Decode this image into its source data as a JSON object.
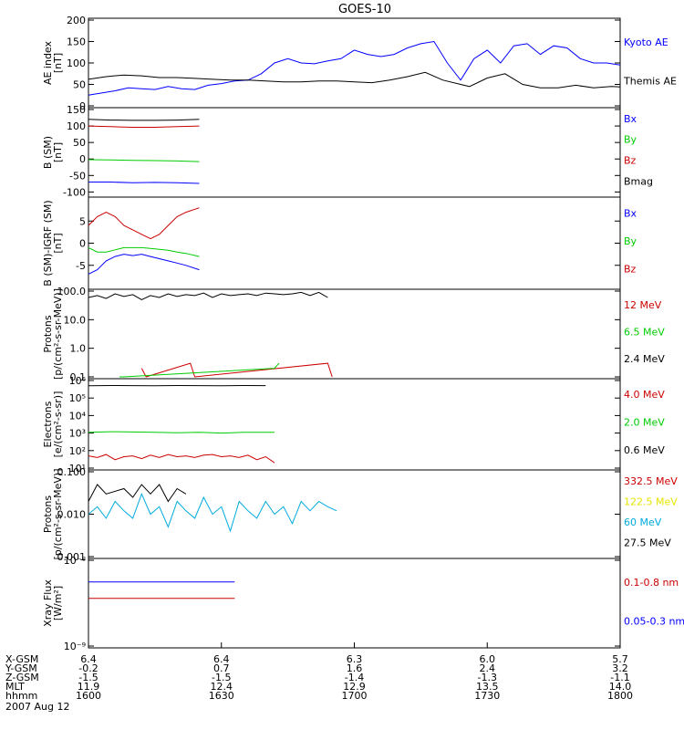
{
  "title": "GOES-10",
  "chart_data": [
    {
      "type": "line",
      "ylabel": [
        "AE index",
        "[nT]"
      ],
      "ylim": [
        0,
        200
      ],
      "yticks": [
        "0",
        "50",
        "100",
        "150",
        "200"
      ],
      "yscale": "linear",
      "series": [
        {
          "name": "Kyoto AE",
          "color": "#0000ff",
          "x": [
            0,
            3,
            6,
            9,
            12,
            15,
            18,
            21,
            24,
            27,
            30,
            33,
            36,
            39,
            42,
            45,
            48,
            51,
            54,
            57,
            60,
            63,
            66,
            69,
            72,
            75,
            78,
            81,
            84,
            87,
            90,
            93,
            96,
            99,
            102,
            105,
            108,
            111,
            114,
            117,
            120
          ],
          "y": [
            25,
            30,
            35,
            42,
            40,
            38,
            45,
            40,
            38,
            48,
            52,
            58,
            60,
            75,
            100,
            110,
            100,
            98,
            105,
            110,
            130,
            120,
            115,
            120,
            135,
            145,
            150,
            100,
            60,
            110,
            130,
            100,
            140,
            145,
            120,
            140,
            135,
            110,
            100,
            100,
            95
          ]
        },
        {
          "name": "Themis AE",
          "color": "#000000",
          "x": [
            0,
            4,
            8,
            12,
            16,
            20,
            24,
            28,
            32,
            36,
            40,
            44,
            48,
            52,
            56,
            60,
            64,
            68,
            72,
            76,
            80,
            84,
            86,
            90,
            94,
            98,
            102,
            106,
            110,
            114,
            118,
            120
          ],
          "y": [
            62,
            68,
            72,
            70,
            66,
            66,
            64,
            62,
            60,
            60,
            58,
            56,
            56,
            58,
            58,
            56,
            54,
            60,
            68,
            78,
            60,
            50,
            45,
            65,
            75,
            50,
            42,
            42,
            48,
            42,
            45,
            44
          ]
        }
      ]
    },
    {
      "type": "line",
      "ylabel": [
        "B (SM)",
        "[nT]"
      ],
      "ylim": [
        -110,
        150
      ],
      "yticks": [
        "-100",
        "-50",
        "0",
        "50",
        "100",
        "150"
      ],
      "yscale": "linear",
      "series": [
        {
          "name": "Bx",
          "color": "#0000ff",
          "x": [
            0,
            5,
            10,
            15,
            20,
            25
          ],
          "y": [
            -70,
            -70,
            -72,
            -71,
            -72,
            -74
          ]
        },
        {
          "name": "By",
          "color": "#00cc00",
          "x": [
            0,
            5,
            10,
            15,
            20,
            25
          ],
          "y": [
            -2,
            -3,
            -4,
            -5,
            -6,
            -8
          ]
        },
        {
          "name": "Bz",
          "color": "#cc0000",
          "x": [
            0,
            5,
            10,
            15,
            20,
            25
          ],
          "y": [
            100,
            98,
            96,
            96,
            98,
            100
          ]
        },
        {
          "name": "Bmag",
          "color": "#000000",
          "x": [
            0,
            5,
            10,
            15,
            20,
            25
          ],
          "y": [
            120,
            118,
            117,
            117,
            118,
            120
          ]
        }
      ]
    },
    {
      "type": "line",
      "ylabel": [
        "B (SM)-IGRF (SM)",
        "[nT]"
      ],
      "ylim": [
        -10,
        10
      ],
      "yticks": [
        "-5",
        "0",
        "5"
      ],
      "yscale": "linear",
      "series": [
        {
          "name": "Bx",
          "color": "#0000ff",
          "x": [
            0,
            2,
            4,
            6,
            8,
            10,
            12,
            14,
            16,
            18,
            20,
            22,
            25
          ],
          "y": [
            -7,
            -6,
            -4,
            -3,
            -2.5,
            -2.8,
            -2.5,
            -3,
            -3.5,
            -4,
            -4.5,
            -5,
            -6
          ]
        },
        {
          "name": "By",
          "color": "#00cc00",
          "x": [
            0,
            2,
            4,
            6,
            8,
            10,
            12,
            14,
            16,
            18,
            20,
            22,
            25
          ],
          "y": [
            -1,
            -2,
            -2,
            -1.5,
            -1,
            -1,
            -1,
            -1.2,
            -1.4,
            -1.6,
            -2,
            -2.3,
            -3
          ]
        },
        {
          "name": "Bz",
          "color": "#cc0000",
          "x": [
            0,
            2,
            4,
            6,
            8,
            10,
            12,
            14,
            16,
            18,
            20,
            22,
            25
          ],
          "y": [
            4,
            6,
            7,
            6,
            4,
            3,
            2,
            1,
            2,
            4,
            6,
            7,
            8
          ]
        }
      ]
    },
    {
      "type": "line",
      "ylabel": [
        "Protons",
        "[p/(cm²-s-sr-MeV)]"
      ],
      "ylim": [
        0.1,
        100
      ],
      "yticks": [
        "0.1",
        "1.0",
        "10.0",
        "100.0"
      ],
      "yscale": "log",
      "series": [
        {
          "name": "12 MeV",
          "color": "#cc0000",
          "x": [
            12,
            13,
            23,
            24,
            54,
            55
          ],
          "y": [
            0.2,
            0.1,
            0.3,
            0.1,
            0.3,
            0.1
          ]
        },
        {
          "name": "6.5 MeV",
          "color": "#00cc00",
          "x": [
            7,
            8,
            42,
            43
          ],
          "y": [
            0.1,
            0.1,
            0.2,
            0.3
          ]
        },
        {
          "name": "2.4 MeV",
          "color": "#000000",
          "x": [
            0,
            2,
            4,
            6,
            8,
            10,
            12,
            14,
            16,
            18,
            20,
            22,
            24,
            26,
            28,
            30,
            32,
            34,
            36,
            38,
            40,
            42,
            44,
            46,
            48,
            50,
            52,
            54
          ],
          "y": [
            60,
            70,
            55,
            80,
            65,
            75,
            50,
            70,
            60,
            80,
            65,
            75,
            70,
            85,
            60,
            80,
            70,
            75,
            80,
            70,
            85,
            80,
            75,
            80,
            90,
            70,
            90,
            60
          ]
        }
      ]
    },
    {
      "type": "line",
      "ylabel": [
        "Electrons",
        "[e/(cm²-s-sr)]"
      ],
      "ylim": [
        10,
        1000000
      ],
      "yticks": [
        "10¹",
        "10²",
        "10³",
        "10⁴",
        "10⁵",
        "10⁶"
      ],
      "yscale": "log",
      "series": [
        {
          "name": "4.0 MeV",
          "color": "#cc0000",
          "x": [
            0,
            2,
            4,
            6,
            8,
            10,
            12,
            14,
            16,
            18,
            20,
            22,
            24,
            26,
            28,
            30,
            32,
            34,
            36,
            38,
            40,
            42
          ],
          "y": [
            50,
            40,
            60,
            30,
            45,
            50,
            35,
            55,
            40,
            60,
            45,
            50,
            40,
            55,
            60,
            45,
            50,
            40,
            55,
            30,
            45,
            20
          ]
        },
        {
          "name": "2.0 MeV",
          "color": "#00cc00",
          "x": [
            0,
            5,
            10,
            15,
            20,
            25,
            30,
            35,
            40,
            42
          ],
          "y": [
            1100,
            1200,
            1150,
            1100,
            1050,
            1100,
            1000,
            1100,
            1100,
            1100
          ]
        },
        {
          "name": "0.6 MeV",
          "color": "#000000",
          "x": [
            0,
            5,
            10,
            15,
            20,
            25,
            30,
            35,
            40
          ],
          "y": [
            500000,
            520000,
            510000,
            500000,
            520000,
            510000,
            500000,
            520000,
            510000
          ]
        }
      ]
    },
    {
      "type": "line",
      "ylabel": [
        "Protons",
        "[p/(cm²-s-sr-MeV)]"
      ],
      "ylim": [
        0.001,
        0.1
      ],
      "yticks": [
        "0.001",
        "0.010",
        "0.100"
      ],
      "yscale": "log",
      "series": [
        {
          "name": "332.5 MeV",
          "color": "#cc0000",
          "x": [],
          "y": []
        },
        {
          "name": "122.5 MeV",
          "color": "#e6e600",
          "x": [],
          "y": []
        },
        {
          "name": "60 MeV",
          "color": "#00aadd",
          "x": [
            0,
            2,
            4,
            6,
            8,
            10,
            12,
            14,
            16,
            18,
            20,
            22,
            24,
            26,
            28,
            30,
            32,
            34,
            36,
            38,
            40,
            42,
            44,
            46,
            48,
            50,
            52,
            54,
            56
          ],
          "y": [
            0.01,
            0.015,
            0.008,
            0.02,
            0.012,
            0.008,
            0.03,
            0.01,
            0.015,
            0.005,
            0.02,
            0.012,
            0.008,
            0.025,
            0.01,
            0.015,
            0.004,
            0.02,
            0.012,
            0.008,
            0.02,
            0.01,
            0.015,
            0.006,
            0.02,
            0.012,
            0.02,
            0.015,
            0.012
          ]
        },
        {
          "name": "27.5 MeV",
          "color": "#000000",
          "x": [
            0,
            2,
            4,
            8,
            10,
            12,
            14,
            16,
            18,
            20,
            22
          ],
          "y": [
            0.02,
            0.05,
            0.03,
            0.04,
            0.025,
            0.05,
            0.03,
            0.05,
            0.02,
            0.04,
            0.03
          ]
        }
      ]
    },
    {
      "type": "line",
      "ylabel": [
        "Xray Flux",
        "[W/m²]"
      ],
      "ylim": [
        1e-09,
        1e-08
      ],
      "yticks": [
        "10⁻⁹",
        "10⁻⁸"
      ],
      "yscale": "log",
      "series": [
        {
          "name": "0.1-0.8 nm",
          "color": "#cc0000",
          "x": [
            0,
            33
          ],
          "y": [
            3.6e-09,
            3.6e-09
          ]
        },
        {
          "name": "0.05-0.3 nm",
          "color": "#0000ff",
          "x": [
            0,
            33
          ],
          "y": [
            5.6e-09,
            5.6e-09
          ]
        }
      ]
    }
  ],
  "xlim": [
    0,
    120
  ],
  "ephemeris": {
    "rows": [
      "X-GSM",
      "Y-GSM",
      "Z-GSM",
      "MLT",
      "hhmm"
    ],
    "columns": [
      [
        "6.4",
        "-0.2",
        "-1.5",
        "11.9",
        "1600"
      ],
      [
        "6.4",
        "0.7",
        "-1.5",
        "12.4",
        "1630"
      ],
      [
        "6.3",
        "1.6",
        "-1.4",
        "12.9",
        "1700"
      ],
      [
        "6.0",
        "2.4",
        "-1.3",
        "13.5",
        "1730"
      ],
      [
        "5.7",
        "3.2",
        "-1.1",
        "14.0",
        "1800"
      ]
    ],
    "date": "2007 Aug 12"
  }
}
